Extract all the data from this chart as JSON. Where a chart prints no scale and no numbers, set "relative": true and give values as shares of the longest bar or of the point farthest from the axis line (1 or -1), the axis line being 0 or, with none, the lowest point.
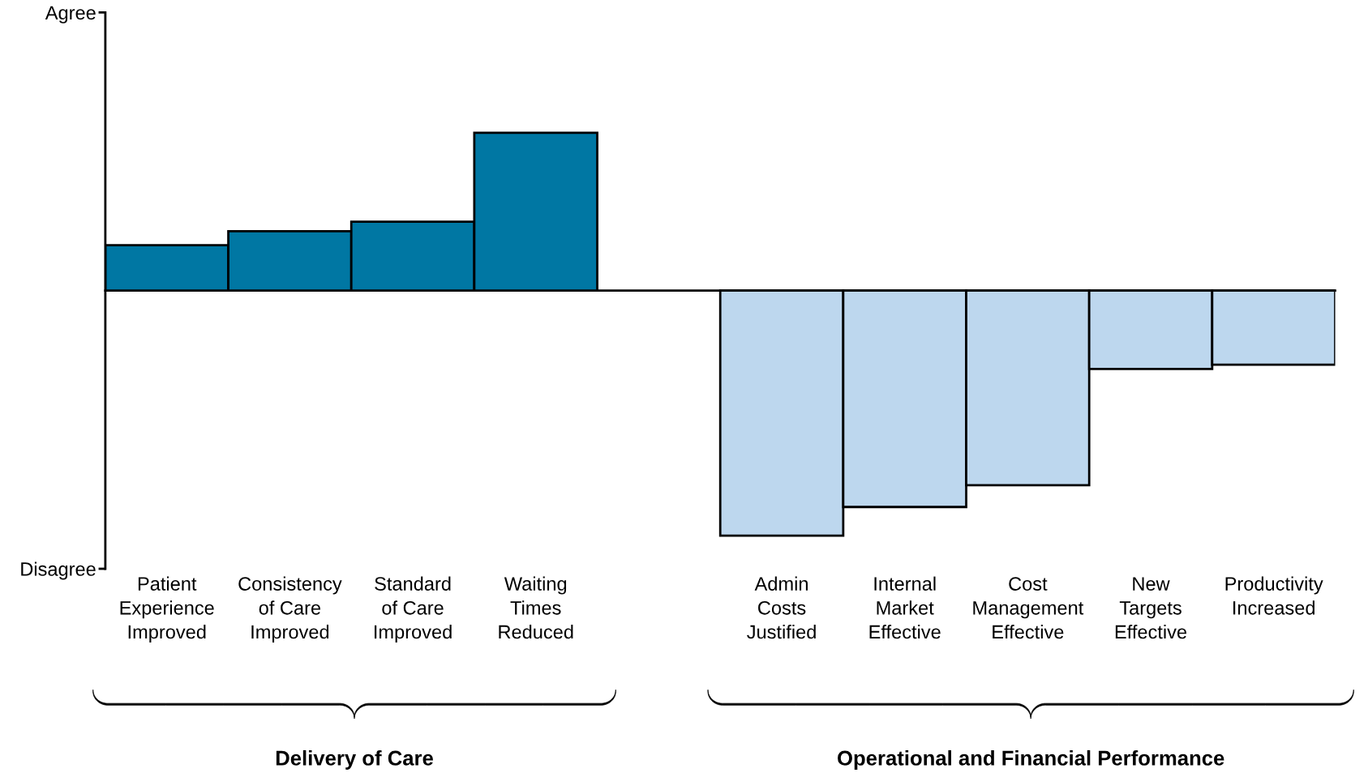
{
  "chart_data": {
    "type": "bar",
    "relative": true,
    "categories": [
      "Patient\nExperience\nImproved",
      "Consistency\nof Care\nImproved",
      "Standard\nof Care\nImproved",
      "Waiting\nTimes\nReduced",
      null,
      "Admin\nCosts\nJustified",
      "Internal\nMarket\nEffective",
      "Cost\nManagement\nEffective",
      "New\nTargets\nEffective",
      "Productivity\nIncreased"
    ],
    "series": [
      {
        "color": "#0077a3",
        "values": [
          0.185,
          0.242,
          0.281,
          0.644,
          null,
          null,
          null,
          null,
          null,
          null
        ]
      },
      {
        "color": "#bdd7ee",
        "values": [
          null,
          null,
          null,
          null,
          null,
          -1,
          -0.883,
          -0.794,
          -0.32,
          -0.302
        ]
      }
    ],
    "annotations": [
      "Agree",
      "Disagree",
      "Delivery of Care",
      "Operational and Financial Performance"
    ]
  }
}
